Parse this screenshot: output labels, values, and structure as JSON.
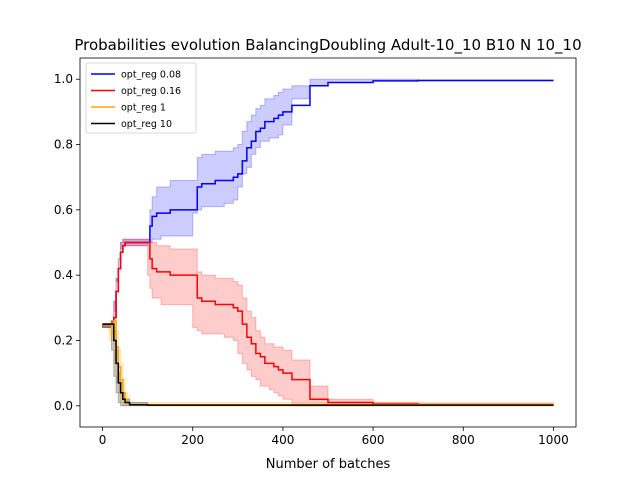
{
  "chart_data": {
    "type": "line",
    "title": "Probabilities evolution BalancingDoubling Adult-10_10 B10 N 10_10",
    "xlabel": "Number of batches",
    "ylabel": "",
    "xlim": [
      -50,
      1050
    ],
    "ylim": [
      -0.065,
      1.065
    ],
    "x_ticks": [
      0,
      200,
      400,
      600,
      800,
      1000
    ],
    "y_ticks": [
      0.0,
      0.2,
      0.4,
      0.6,
      0.8,
      1.0
    ],
    "x_tick_labels": [
      "0",
      "200",
      "400",
      "600",
      "800",
      "1000"
    ],
    "y_tick_labels": [
      "0.0",
      "0.2",
      "0.4",
      "0.6",
      "0.8",
      "1.0"
    ],
    "legend_position": "top-left",
    "grid": false,
    "series": [
      {
        "name": "opt_reg 0.08",
        "color": "#0000ff",
        "x": [
          0,
          20,
          25,
          30,
          35,
          40,
          45,
          50,
          60,
          80,
          100,
          105,
          110,
          120,
          130,
          150,
          200,
          210,
          220,
          250,
          270,
          290,
          300,
          310,
          320,
          330,
          340,
          350,
          360,
          370,
          380,
          390,
          400,
          420,
          460,
          500,
          600,
          700,
          1000
        ],
        "y": [
          0.25,
          0.25,
          0.27,
          0.35,
          0.42,
          0.47,
          0.49,
          0.5,
          0.5,
          0.5,
          0.5,
          0.55,
          0.58,
          0.59,
          0.59,
          0.6,
          0.6,
          0.67,
          0.68,
          0.69,
          0.69,
          0.7,
          0.71,
          0.75,
          0.79,
          0.81,
          0.84,
          0.85,
          0.87,
          0.87,
          0.88,
          0.89,
          0.9,
          0.92,
          0.98,
          0.99,
          0.995,
          0.996,
          0.996
        ],
        "lower": [
          0.25,
          0.24,
          0.25,
          0.32,
          0.39,
          0.45,
          0.48,
          0.49,
          0.49,
          0.49,
          0.49,
          0.5,
          0.5,
          0.51,
          0.51,
          0.52,
          0.52,
          0.59,
          0.6,
          0.61,
          0.61,
          0.62,
          0.63,
          0.67,
          0.71,
          0.73,
          0.77,
          0.79,
          0.81,
          0.81,
          0.82,
          0.82,
          0.83,
          0.86,
          0.94,
          0.98,
          0.99,
          0.995,
          0.995
        ],
        "upper": [
          0.25,
          0.26,
          0.29,
          0.38,
          0.45,
          0.5,
          0.51,
          0.51,
          0.51,
          0.51,
          0.51,
          0.6,
          0.64,
          0.67,
          0.67,
          0.69,
          0.69,
          0.76,
          0.77,
          0.78,
          0.78,
          0.79,
          0.8,
          0.84,
          0.87,
          0.89,
          0.91,
          0.92,
          0.94,
          0.94,
          0.95,
          0.96,
          0.97,
          0.98,
          1.0,
          1.0,
          1.0,
          0.998,
          0.998
        ]
      },
      {
        "name": "opt_reg 0.16",
        "color": "#ff0000",
        "x": [
          0,
          20,
          25,
          30,
          35,
          40,
          45,
          50,
          60,
          80,
          100,
          105,
          110,
          120,
          130,
          150,
          200,
          210,
          220,
          250,
          270,
          290,
          300,
          310,
          320,
          330,
          340,
          350,
          360,
          370,
          380,
          390,
          400,
          420,
          460,
          500,
          600,
          700,
          1000
        ],
        "y": [
          0.25,
          0.25,
          0.27,
          0.35,
          0.42,
          0.47,
          0.49,
          0.5,
          0.5,
          0.5,
          0.5,
          0.45,
          0.42,
          0.41,
          0.41,
          0.4,
          0.4,
          0.33,
          0.32,
          0.31,
          0.31,
          0.3,
          0.29,
          0.25,
          0.21,
          0.19,
          0.16,
          0.15,
          0.13,
          0.13,
          0.12,
          0.11,
          0.1,
          0.08,
          0.02,
          0.01,
          0.005,
          0.004,
          0.004
        ],
        "lower": [
          0.25,
          0.24,
          0.25,
          0.32,
          0.39,
          0.45,
          0.48,
          0.49,
          0.49,
          0.49,
          0.49,
          0.4,
          0.36,
          0.33,
          0.33,
          0.31,
          0.31,
          0.24,
          0.23,
          0.22,
          0.22,
          0.21,
          0.2,
          0.16,
          0.13,
          0.11,
          0.09,
          0.08,
          0.06,
          0.06,
          0.05,
          0.04,
          0.03,
          0.02,
          0.0,
          0.0,
          0.0,
          0.002,
          0.002
        ],
        "upper": [
          0.25,
          0.26,
          0.29,
          0.38,
          0.45,
          0.5,
          0.51,
          0.51,
          0.51,
          0.51,
          0.51,
          0.5,
          0.5,
          0.49,
          0.49,
          0.48,
          0.48,
          0.41,
          0.4,
          0.39,
          0.39,
          0.38,
          0.37,
          0.33,
          0.29,
          0.27,
          0.23,
          0.21,
          0.19,
          0.19,
          0.18,
          0.18,
          0.17,
          0.14,
          0.06,
          0.02,
          0.01,
          0.005,
          0.005
        ]
      },
      {
        "name": "opt_reg 1",
        "color": "#ffa500",
        "x": [
          0,
          15,
          20,
          25,
          30,
          35,
          40,
          45,
          50,
          55,
          60,
          1000
        ],
        "y": [
          0.25,
          0.25,
          0.22,
          0.26,
          0.18,
          0.12,
          0.08,
          0.04,
          0.02,
          0.01,
          0.003,
          0.002
        ],
        "lower": [
          0.25,
          0.24,
          0.2,
          0.22,
          0.13,
          0.07,
          0.04,
          0.01,
          0.0,
          0.0,
          0.0,
          0.0
        ],
        "upper": [
          0.25,
          0.26,
          0.25,
          0.28,
          0.23,
          0.17,
          0.13,
          0.08,
          0.04,
          0.03,
          0.01,
          0.004
        ]
      },
      {
        "name": "opt_reg 10",
        "color": "#000000",
        "x": [
          0,
          20,
          25,
          30,
          35,
          40,
          45,
          50,
          60,
          100,
          1000
        ],
        "y": [
          0.25,
          0.25,
          0.2,
          0.13,
          0.07,
          0.04,
          0.02,
          0.01,
          0.003,
          0.002,
          0.002
        ],
        "lower": [
          0.25,
          0.24,
          0.17,
          0.09,
          0.04,
          0.01,
          0.0,
          0.0,
          0.0,
          0.0,
          0.0
        ],
        "upper": [
          0.25,
          0.26,
          0.23,
          0.17,
          0.1,
          0.07,
          0.04,
          0.02,
          0.01,
          0.004,
          0.004
        ]
      }
    ]
  }
}
